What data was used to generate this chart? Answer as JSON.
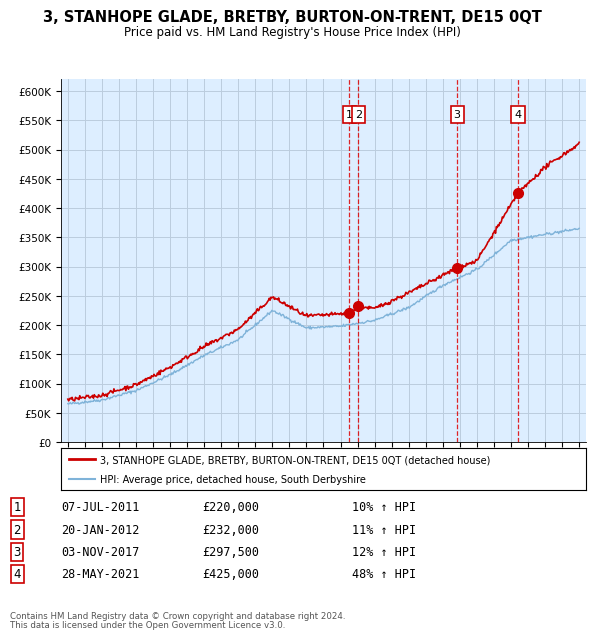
{
  "title": "3, STANHOPE GLADE, BRETBY, BURTON-ON-TRENT, DE15 0QT",
  "subtitle": "Price paid vs. HM Land Registry's House Price Index (HPI)",
  "hpi_color": "#7fb3d9",
  "price_color": "#cc0000",
  "sale_color": "#cc0000",
  "background_color": "#ffffff",
  "chart_bg_color": "#ddeeff",
  "grid_color": "#bbccdd",
  "sale_vline_color": "#dd0000",
  "ylim": [
    0,
    620000
  ],
  "yticks": [
    0,
    50000,
    100000,
    150000,
    200000,
    250000,
    300000,
    350000,
    400000,
    450000,
    500000,
    550000,
    600000
  ],
  "x_start_year": 1995,
  "x_end_year": 2025,
  "legend_house_label": "3, STANHOPE GLADE, BRETBY, BURTON-ON-TRENT, DE15 0QT (detached house)",
  "legend_hpi_label": "HPI: Average price, detached house, South Derbyshire",
  "sales": [
    {
      "num": 1,
      "date": "07-JUL-2011",
      "year": 2011.52,
      "price": 220000,
      "pct": "10%",
      "dir": "↑"
    },
    {
      "num": 2,
      "date": "20-JAN-2012",
      "year": 2012.05,
      "price": 232000,
      "pct": "11%",
      "dir": "↑"
    },
    {
      "num": 3,
      "date": "03-NOV-2017",
      "year": 2017.84,
      "price": 297500,
      "pct": "12%",
      "dir": "↑"
    },
    {
      "num": 4,
      "date": "28-MAY-2021",
      "year": 2021.41,
      "price": 425000,
      "pct": "48%",
      "dir": "↑"
    }
  ],
  "footer_line1": "Contains HM Land Registry data © Crown copyright and database right 2024.",
  "footer_line2": "This data is licensed under the Open Government Licence v3.0.",
  "table_rows": [
    [
      "1",
      "07-JUL-2011",
      "£220,000",
      "10% ↑ HPI"
    ],
    [
      "2",
      "20-JAN-2012",
      "£232,000",
      "11% ↑ HPI"
    ],
    [
      "3",
      "03-NOV-2017",
      "£297,500",
      "12% ↑ HPI"
    ],
    [
      "4",
      "28-MAY-2021",
      "£425,000",
      "48% ↑ HPI"
    ]
  ]
}
